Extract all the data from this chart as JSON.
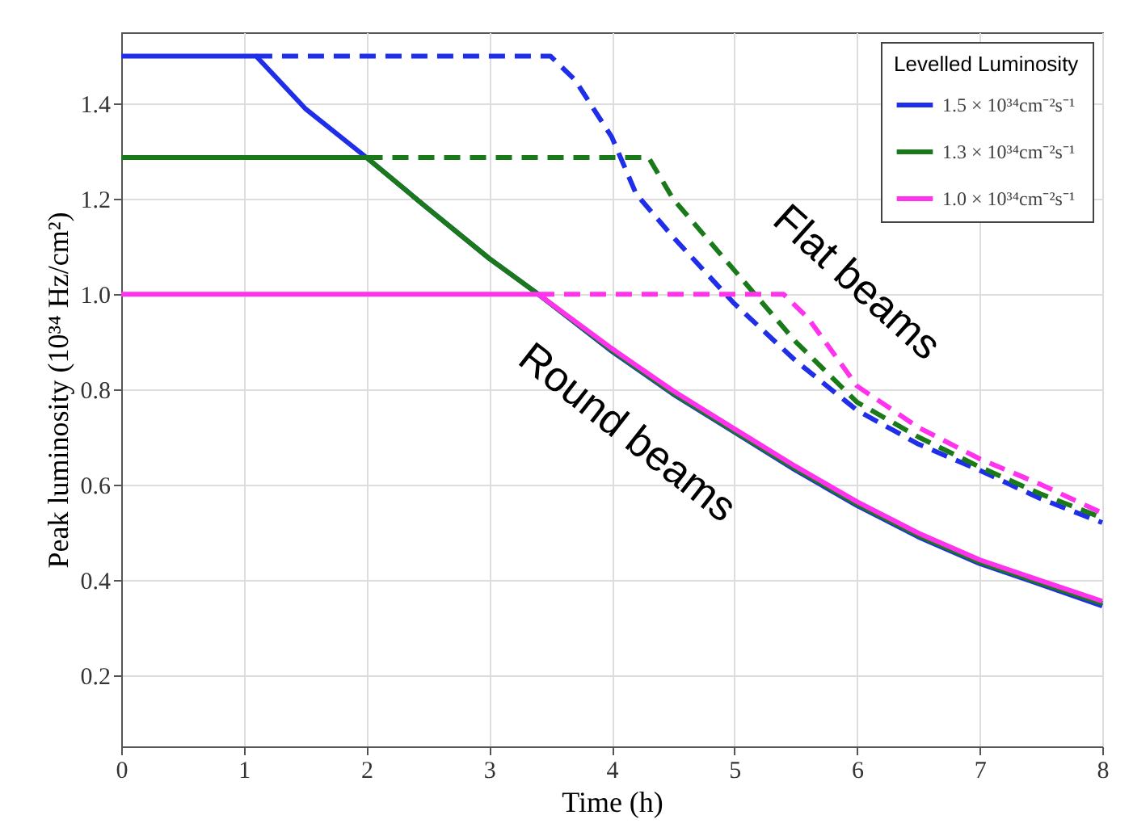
{
  "chart_data": {
    "type": "line",
    "xlabel": "Time (h)",
    "ylabel": "Peak luminosity (10³⁴ Hz/cm²)",
    "legend_title": "Levelled Luminosity",
    "xlim": [
      0,
      8
    ],
    "xticks": [
      0,
      1,
      2,
      3,
      4,
      5,
      6,
      7,
      8
    ],
    "ylim": [
      0.05,
      1.55
    ],
    "yticks": [
      0.2,
      0.4,
      0.6,
      0.8,
      {
        "value": 1,
        "label": "1.0"
      },
      1.2,
      1.4
    ],
    "grid": true,
    "legend": "top right",
    "marker": "none",
    "annotations": [
      "Flat beams",
      "Round beams"
    ],
    "series": [
      {
        "name": "1.5 × 10³⁴cm⁻²s⁻¹",
        "color": "#1f2ee8",
        "line_style": "solid",
        "x": [
          0,
          1.1,
          1.5,
          2,
          2.5,
          3,
          3.4,
          4,
          4.5,
          5,
          5.5,
          6,
          6.5,
          7,
          7.5,
          8
        ],
        "values": [
          1.5,
          1.5,
          1.39,
          1.287,
          1.18,
          1.075,
          1.0,
          0.88,
          0.79,
          0.71,
          0.63,
          0.556,
          0.49,
          0.434,
          0.39,
          0.345
        ]
      },
      {
        "name": "1.3 × 10³⁴cm⁻²s⁻¹",
        "color": "#1a7a1a",
        "line_style": "solid",
        "x": [
          0,
          2,
          2.5,
          3,
          3.4,
          4,
          4.5,
          5,
          5.5,
          6,
          6.5,
          7,
          7.5,
          8
        ],
        "values": [
          1.287,
          1.287,
          1.18,
          1.075,
          1.0,
          0.882,
          0.792,
          0.712,
          0.633,
          0.559,
          0.493,
          0.437,
          0.393,
          0.35
        ]
      },
      {
        "name": "1.0 × 10³⁴cm⁻²s⁻¹",
        "color": "#ff33ee",
        "line_style": "solid",
        "x": [
          0,
          3.4,
          4,
          4.5,
          5,
          5.5,
          6,
          6.5,
          7,
          7.5,
          8
        ],
        "values": [
          1.0,
          1.0,
          0.886,
          0.797,
          0.717,
          0.638,
          0.564,
          0.498,
          0.442,
          0.398,
          0.355
        ]
      },
      {
        "color": "#1f2ee8",
        "line_style": "dashed",
        "x": [
          1.1,
          3.5,
          3.7,
          4,
          4.2,
          4.5,
          5,
          5.5,
          6,
          6.5,
          7,
          7.5,
          8
        ],
        "values": [
          1.5,
          1.5,
          1.45,
          1.33,
          1.21,
          1.12,
          0.98,
          0.86,
          0.756,
          0.685,
          0.63,
          0.57,
          0.52
        ]
      },
      {
        "color": "#1a7a1a",
        "line_style": "dashed",
        "x": [
          2,
          4.3,
          4.5,
          5,
          5.5,
          6,
          6.5,
          7,
          7.5,
          8
        ],
        "values": [
          1.287,
          1.287,
          1.2,
          1.05,
          0.9,
          0.773,
          0.7,
          0.637,
          0.58,
          0.53
        ]
      },
      {
        "color": "#ff33ee",
        "line_style": "dashed",
        "x": [
          3.4,
          5.4,
          5.6,
          6,
          6.5,
          7,
          7.5,
          8
        ],
        "values": [
          1.0,
          1.0,
          0.95,
          0.807,
          0.72,
          0.654,
          0.6,
          0.54
        ]
      }
    ]
  }
}
